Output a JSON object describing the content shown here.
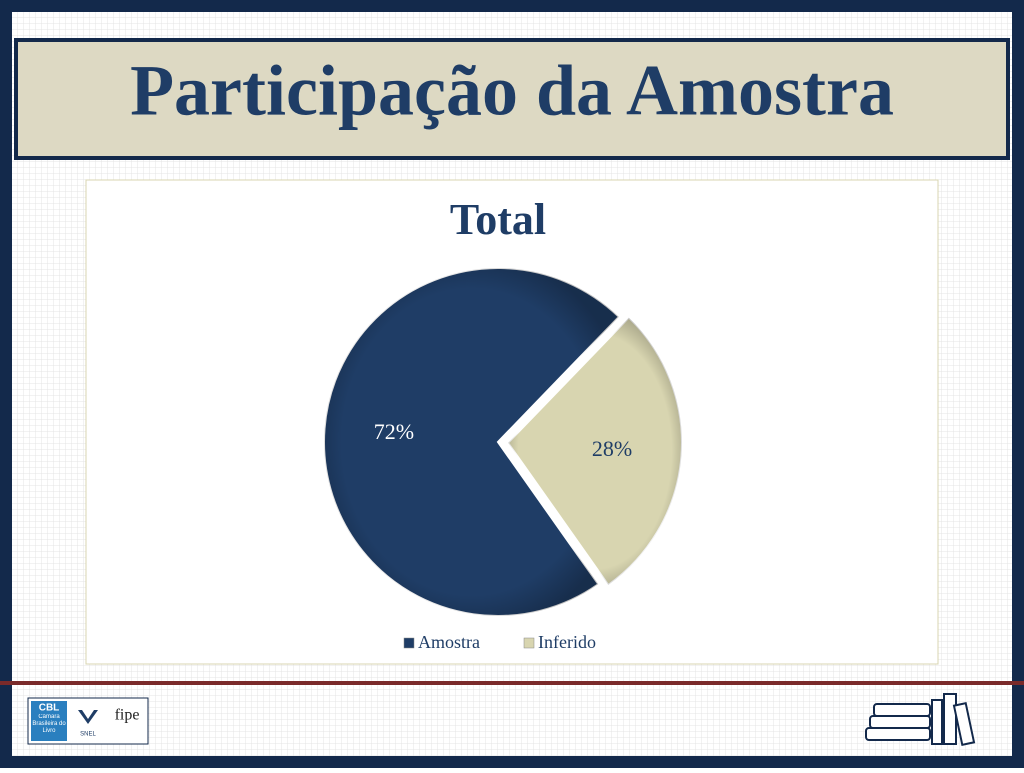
{
  "slide_title": "Participação da Amostra",
  "chart_data": {
    "type": "pie",
    "title": "Total",
    "categories": [
      "Amostra",
      "Inferido"
    ],
    "values": [
      72,
      28
    ],
    "value_labels": [
      "72%",
      "28%"
    ],
    "colors": [
      "#1f3d66",
      "#d8d5b0"
    ],
    "legend": "bottom"
  },
  "footer": {
    "logos": [
      "CBL",
      "Câmara Brasileira do Livro",
      "SNEL",
      "fipe"
    ]
  }
}
